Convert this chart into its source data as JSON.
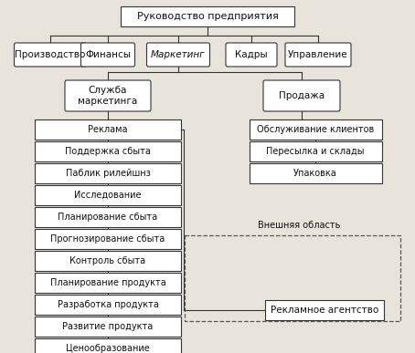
{
  "bg_color": "#e8e4dc",
  "box_color": "#ffffff",
  "box_edge": "#333333",
  "line_color": "#333333",
  "font_color": "#111111",
  "title": "Руководство предприятия",
  "level1": [
    "Производство",
    "Финансы",
    "Маркетинг",
    "Кадры",
    "Управление"
  ],
  "marketing_italic": "Маркетинг",
  "level2_left": "Служба\nмаркетинга",
  "level2_right": "Продажа",
  "left_items": [
    "Реклама",
    "Поддержка сбыта",
    "Паблик рилейшнз",
    "Исследование",
    "Планирование сбыта",
    "Прогнозирование сбыта",
    "Контроль сбыта",
    "Планирование продукта",
    "Разработка продукта",
    "Развитие продукта",
    "Ценообразование"
  ],
  "right_items": [
    "Обслуживание клиентов",
    "Пересылка и склады",
    "Упаковка"
  ],
  "external_label": "Внешняя область",
  "agency_label": "Рекламное агентство"
}
